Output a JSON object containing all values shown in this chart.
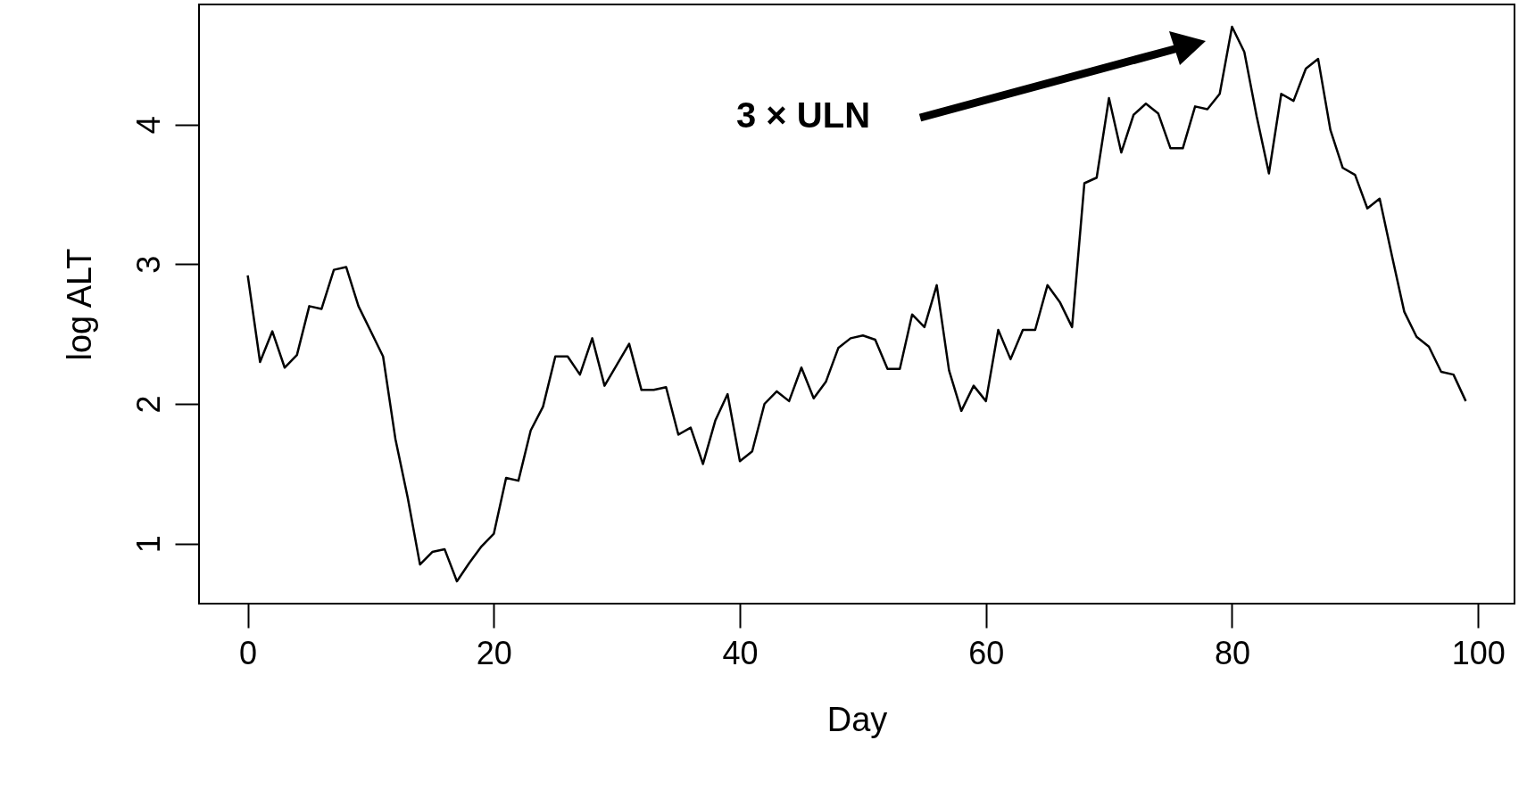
{
  "chart_data": {
    "type": "line",
    "xlabel": "Day",
    "ylabel": "log ALT",
    "color": "#000000",
    "x": [
      0,
      1,
      2,
      3,
      4,
      5,
      6,
      7,
      8,
      9,
      10,
      11,
      12,
      13,
      14,
      15,
      16,
      17,
      18,
      19,
      20,
      21,
      22,
      23,
      24,
      25,
      26,
      27,
      28,
      29,
      30,
      31,
      32,
      33,
      34,
      35,
      36,
      37,
      38,
      39,
      40,
      41,
      42,
      43,
      44,
      45,
      46,
      47,
      48,
      49,
      50,
      51,
      52,
      53,
      54,
      55,
      56,
      57,
      58,
      59,
      60,
      61,
      62,
      63,
      64,
      65,
      66,
      67,
      68,
      69,
      70,
      71,
      72,
      73,
      74,
      75,
      76,
      77,
      78,
      79,
      80,
      81,
      82,
      83,
      84,
      85,
      86,
      87,
      88,
      89,
      90,
      91,
      92,
      93,
      94,
      95,
      96,
      97,
      98,
      99
    ],
    "values": [
      2.92,
      2.3,
      2.52,
      2.26,
      2.35,
      2.7,
      2.68,
      2.96,
      2.98,
      2.7,
      2.52,
      2.34,
      1.75,
      1.33,
      0.85,
      0.94,
      0.96,
      0.73,
      0.86,
      0.98,
      1.07,
      1.47,
      1.45,
      1.81,
      1.98,
      2.34,
      2.34,
      2.21,
      2.47,
      2.13,
      2.28,
      2.43,
      2.1,
      2.1,
      2.12,
      1.78,
      1.83,
      1.57,
      1.88,
      2.07,
      1.59,
      1.66,
      2.0,
      2.09,
      2.02,
      2.26,
      2.04,
      2.16,
      2.4,
      2.47,
      2.49,
      2.46,
      2.25,
      2.25,
      2.64,
      2.55,
      2.85,
      2.24,
      1.95,
      2.13,
      2.02,
      2.53,
      2.32,
      2.53,
      2.53,
      2.85,
      2.73,
      2.55,
      3.58,
      3.62,
      4.19,
      3.8,
      4.07,
      4.15,
      4.08,
      3.83,
      3.83,
      4.13,
      4.11,
      4.22,
      4.7,
      4.52,
      4.06,
      3.65,
      4.22,
      4.17,
      4.4,
      4.47,
      3.96,
      3.69,
      3.64,
      3.4,
      3.47,
      3.06,
      2.66,
      2.48,
      2.41,
      2.23,
      2.21,
      2.02
    ],
    "xlim": [
      -3.96,
      102.96
    ],
    "ylim": [
      0.57,
      4.86
    ],
    "xticks": [
      0,
      20,
      40,
      60,
      80,
      100
    ],
    "yticks": [
      1,
      2,
      3,
      4
    ],
    "annotations": [
      "3 × ULN"
    ]
  }
}
